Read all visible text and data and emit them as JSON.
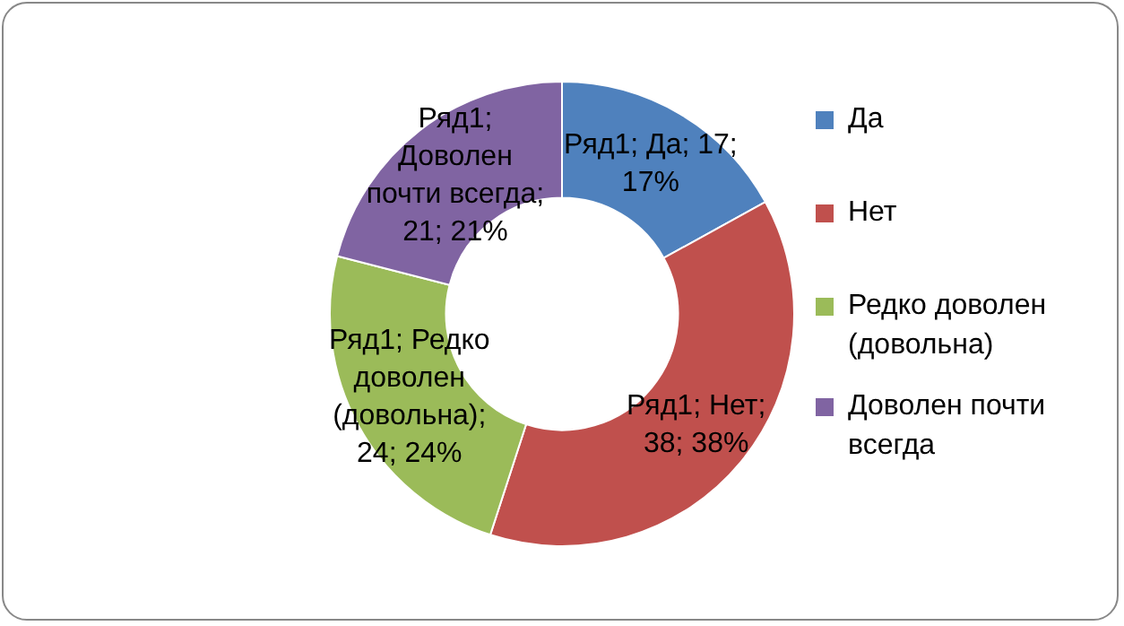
{
  "chart_data": {
    "type": "donut",
    "categories": [
      "Да",
      "Нет",
      "Редко доволен (довольна)",
      "Доволен почти всегда"
    ],
    "series": [
      {
        "values": [
          17,
          38,
          24,
          21
        ],
        "colors": [
          "#4f81bd",
          "#c0504d",
          "#9bbb59",
          "#8064a2"
        ],
        "value_labels": [
          "Ряд1; Да; 17; 17%",
          "Ряд1; Нет; 38; 38%",
          "Ряд1; Редко доволен (довольна); 24; 24%",
          "Ряд1; Доволен почти всегда; 21; 21%"
        ]
      }
    ],
    "legend": "right"
  }
}
